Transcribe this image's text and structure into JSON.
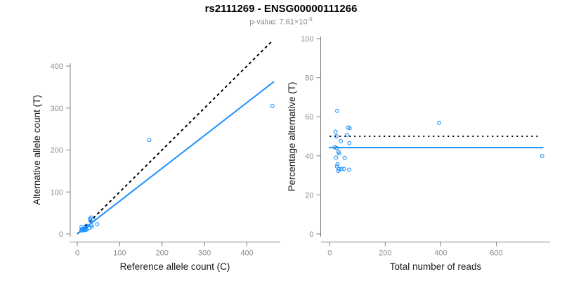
{
  "figure": {
    "title": "rs2111269 - ENSG00000111266",
    "pvalue_prefix": "p-value: 7.61×10",
    "pvalue_exponent": "-9"
  },
  "colors": {
    "accent_blue": "#1e90ff",
    "line_black": "#000000",
    "axis_gray": "#7f7f7f",
    "tick_label_gray": "#8c8c8c",
    "axis_title_black": "#1a1a1a"
  },
  "chart_data": [
    {
      "type": "scatter",
      "name": "allele-counts-panel",
      "xlabel": "Reference allele count (C)",
      "ylabel": "Alternative allele count (T)",
      "xlim": [
        0,
        460
      ],
      "ylim": [
        0,
        460
      ],
      "xticks": [
        0,
        100,
        200,
        300,
        400
      ],
      "yticks": [
        0,
        100,
        200,
        300,
        400
      ],
      "grid": false,
      "marker": "open-circle",
      "points": [
        [
          10,
          17
        ],
        [
          30,
          36
        ],
        [
          33,
          39
        ],
        [
          10,
          11
        ],
        [
          12,
          12
        ],
        [
          31,
          32
        ],
        [
          21,
          19
        ],
        [
          38,
          33
        ],
        [
          14,
          11
        ],
        [
          10,
          8
        ],
        [
          18,
          13
        ],
        [
          20,
          14
        ],
        [
          14,
          9
        ],
        [
          33,
          21
        ],
        [
          18,
          10
        ],
        [
          17,
          9
        ],
        [
          28,
          14
        ],
        [
          22,
          11
        ],
        [
          34,
          17
        ],
        [
          47,
          23
        ],
        [
          21,
          10
        ],
        [
          170,
          224
        ],
        [
          460,
          305
        ]
      ],
      "lines": [
        {
          "name": "identity-line",
          "x1": 0,
          "y1": 0,
          "x2": 460,
          "y2": 460,
          "color": "#000000",
          "dash": "4 4",
          "width": 2
        },
        {
          "name": "fit-line",
          "x1": 0,
          "y1": 0,
          "x2": 464,
          "y2": 363,
          "color": "#1e90ff",
          "dash": "",
          "width": 2
        }
      ]
    },
    {
      "type": "scatter",
      "name": "percentage-panel",
      "xlabel": "Total number of reads",
      "ylabel": "Percentage alternative (T)",
      "xlim": [
        0,
        790
      ],
      "ylim": [
        0,
        100
      ],
      "xticks": [
        0,
        200,
        400,
        600
      ],
      "yticks": [
        0,
        20,
        40,
        60,
        80,
        100
      ],
      "grid": false,
      "marker": "open-circle",
      "points": [
        [
          27,
          63
        ],
        [
          66,
          54.5
        ],
        [
          72,
          54.2
        ],
        [
          21,
          52.4
        ],
        [
          24,
          50
        ],
        [
          63,
          50.8
        ],
        [
          40,
          47.5
        ],
        [
          71,
          46.5
        ],
        [
          25,
          44
        ],
        [
          18,
          44.4
        ],
        [
          31,
          41.9
        ],
        [
          34,
          41.2
        ],
        [
          23,
          39.1
        ],
        [
          54,
          38.9
        ],
        [
          28,
          35.7
        ],
        [
          26,
          34.6
        ],
        [
          42,
          33.3
        ],
        [
          33,
          33.3
        ],
        [
          51,
          33.3
        ],
        [
          70,
          32.9
        ],
        [
          31,
          32.3
        ],
        [
          394,
          56.9
        ],
        [
          765,
          39.9
        ]
      ],
      "lines": [
        {
          "name": "fifty-percent-line",
          "x1": 0,
          "y1": 50,
          "x2": 760,
          "y2": 50,
          "color": "#000000",
          "dash": "2 5",
          "width": 2
        },
        {
          "name": "mean-percentage-line",
          "x1": -3,
          "y1": 44.2,
          "x2": 770,
          "y2": 44.2,
          "color": "#1e90ff",
          "dash": "",
          "width": 2
        }
      ]
    }
  ]
}
